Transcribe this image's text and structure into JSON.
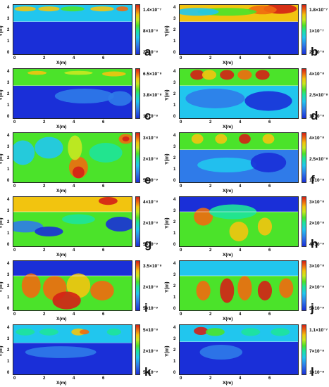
{
  "axis": {
    "ylabel": "Y(m)",
    "xlabel": "X(m)",
    "yticks": [
      "0",
      "1",
      "2",
      "3",
      "4"
    ],
    "xticks": [
      "0",
      "2",
      "4",
      "6"
    ]
  },
  "panels": [
    {
      "letter": "a",
      "cbar": [
        "1.4×10⁻⁷",
        "8×10⁻⁸",
        "2×10⁻⁸"
      ]
    },
    {
      "letter": "b",
      "cbar": [
        "1.8×10⁻⁷",
        "1×10⁻⁷",
        "2×10⁻⁸"
      ]
    },
    {
      "letter": "c",
      "cbar": [
        "6.5×10⁻⁸",
        "3.8×10⁻⁸",
        "1×10⁻⁸"
      ]
    },
    {
      "letter": "d",
      "cbar": [
        "4×10⁻⁸",
        "2.5×10⁻⁸",
        "1×10⁻⁸"
      ]
    },
    {
      "letter": "e",
      "cbar": [
        "3×10⁻⁸",
        "2×10⁻⁸",
        "5×10⁻⁹"
      ]
    },
    {
      "letter": "f",
      "cbar": [
        "4×10⁻⁸",
        "2.5×10⁻⁸",
        "1×10⁻⁸"
      ]
    },
    {
      "letter": "g",
      "cbar": [
        "4×10⁻⁸",
        "2×10⁻⁸",
        "5×10⁻⁹"
      ]
    },
    {
      "letter": "h",
      "cbar": [
        "3×10⁻⁸",
        "2×10⁻⁸",
        "4×10⁻⁹"
      ]
    },
    {
      "letter": "i",
      "cbar": [
        "3.5×10⁻⁸",
        "2×10⁻⁸",
        "5×10⁻⁹"
      ]
    },
    {
      "letter": "j",
      "cbar": [
        "3×10⁻⁸",
        "2×10⁻⁸",
        "5×10⁻⁹"
      ]
    },
    {
      "letter": "k",
      "cbar": [
        "5×10⁻⁸",
        "2×10⁻⁸",
        "5×10⁻⁹"
      ]
    },
    {
      "letter": "l",
      "cbar": [
        "1.1×10⁻⁷",
        "7×10⁻⁸",
        "1×10⁻⁸"
      ]
    }
  ]
}
